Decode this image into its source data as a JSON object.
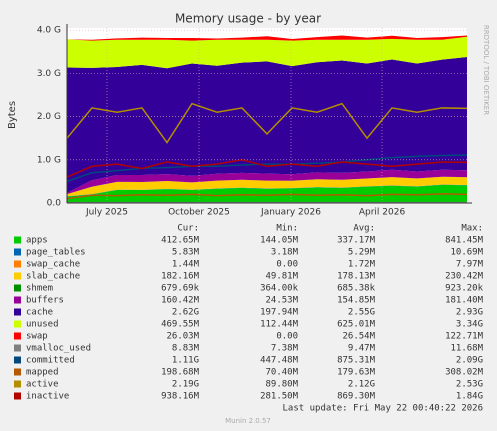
{
  "chart_data": {
    "type": "stacked-area",
    "title": "Memory usage - by year",
    "y_label": "Bytes",
    "side_label": "RRDTOOL / TOBI OETIKER",
    "x": [
      0,
      25,
      50,
      75,
      100,
      125,
      150,
      175,
      200,
      225,
      250,
      275,
      300,
      325,
      350,
      375,
      400
    ],
    "xlim": [
      0,
      400
    ],
    "xticks": [
      {
        "value": 40,
        "label": "July 2025"
      },
      {
        "value": 132,
        "label": "October 2025"
      },
      {
        "value": 224,
        "label": "January 2026"
      },
      {
        "value": 315,
        "label": "April 2026"
      }
    ],
    "ylim": [
      0,
      4.05
    ],
    "yticks": [
      {
        "value": 0,
        "label": "0.0"
      },
      {
        "value": 1,
        "label": "1.0 G"
      },
      {
        "value": 2,
        "label": "2.0 G"
      },
      {
        "value": 3,
        "label": "3.0 G"
      },
      {
        "value": 4,
        "label": "4.0 G"
      }
    ],
    "grid": true,
    "stats_headers": [
      "Cur:",
      "Min:",
      "Avg:",
      "Max:"
    ],
    "series": [
      {
        "name": "apps",
        "color": "#00cc00",
        "kind": "area",
        "values": [
          0.15,
          0.2,
          0.3,
          0.3,
          0.32,
          0.3,
          0.33,
          0.35,
          0.33,
          0.34,
          0.36,
          0.35,
          0.38,
          0.4,
          0.38,
          0.42,
          0.41
        ],
        "stats": [
          "412.65M",
          "144.05M",
          "337.17M",
          "841.45M"
        ]
      },
      {
        "name": "page_tables",
        "color": "#0066b3",
        "kind": "area",
        "values": [
          0.005,
          0.006,
          0.006,
          0.005,
          0.006,
          0.006,
          0.005,
          0.006,
          0.006,
          0.005,
          0.006,
          0.006,
          0.005,
          0.006,
          0.006,
          0.006,
          0.006
        ],
        "stats": [
          "5.83M",
          "3.18M",
          "5.29M",
          "10.69M"
        ]
      },
      {
        "name": "swap_cache",
        "color": "#ff8000",
        "kind": "area",
        "values": [
          0,
          0.001,
          0.002,
          0.001,
          0.002,
          0.001,
          0.002,
          0.001,
          0.002,
          0.001,
          0.002,
          0.001,
          0.002,
          0.003,
          0.002,
          0.002,
          0.001
        ],
        "stats": [
          "1.44M",
          "0.00",
          "1.72M",
          "7.97M"
        ]
      },
      {
        "name": "slab_cache",
        "color": "#ffcc00",
        "kind": "area",
        "values": [
          0.05,
          0.17,
          0.18,
          0.18,
          0.18,
          0.17,
          0.18,
          0.18,
          0.18,
          0.17,
          0.18,
          0.18,
          0.18,
          0.19,
          0.18,
          0.18,
          0.18
        ],
        "stats": [
          "182.16M",
          "49.81M",
          "178.13M",
          "230.42M"
        ]
      },
      {
        "name": "shmem",
        "color": "#008f00",
        "kind": "area",
        "values": [
          0.0004,
          0.0007,
          0.0007,
          0.0007,
          0.0007,
          0.0007,
          0.0007,
          0.0007,
          0.0007,
          0.0007,
          0.0007,
          0.0007,
          0.0007,
          0.0007,
          0.0007,
          0.0007,
          0.0007
        ],
        "stats": [
          "679.69k",
          "364.00k",
          "685.38k",
          "923.20k"
        ]
      },
      {
        "name": "buffers",
        "color": "#990099",
        "kind": "area",
        "values": [
          0.03,
          0.15,
          0.16,
          0.16,
          0.16,
          0.15,
          0.16,
          0.16,
          0.16,
          0.15,
          0.16,
          0.16,
          0.16,
          0.17,
          0.16,
          0.16,
          0.16
        ],
        "stats": [
          "160.42M",
          "24.53M",
          "154.85M",
          "181.40M"
        ]
      },
      {
        "name": "cache",
        "color": "#330099",
        "kind": "area",
        "values": [
          2.9,
          2.6,
          2.5,
          2.55,
          2.45,
          2.6,
          2.5,
          2.55,
          2.6,
          2.5,
          2.55,
          2.6,
          2.5,
          2.55,
          2.5,
          2.55,
          2.62
        ],
        "stats": [
          "2.62G",
          "197.94M",
          "2.55G",
          "2.93G"
        ]
      },
      {
        "name": "unused",
        "color": "#ccff00",
        "kind": "area",
        "values": [
          0.65,
          0.63,
          0.63,
          0.58,
          0.66,
          0.53,
          0.6,
          0.53,
          0.5,
          0.59,
          0.52,
          0.48,
          0.55,
          0.48,
          0.55,
          0.46,
          0.47
        ],
        "stats": [
          "469.55M",
          "112.44M",
          "625.01M",
          "3.34G"
        ]
      },
      {
        "name": "swap",
        "color": "#ff0000",
        "kind": "area",
        "values": [
          0,
          0.02,
          0.03,
          0.05,
          0.04,
          0.06,
          0.03,
          0.05,
          0.08,
          0.04,
          0.06,
          0.1,
          0.05,
          0.07,
          0.04,
          0.06,
          0.03
        ],
        "stats": [
          "26.03M",
          "0.00",
          "26.54M",
          "122.71M"
        ]
      },
      {
        "name": "vmalloc_used",
        "color": "#808080",
        "kind": "line",
        "values": [
          0.009,
          0.009,
          0.009,
          0.009,
          0.009,
          0.009,
          0.009,
          0.009,
          0.009,
          0.009,
          0.009,
          0.009,
          0.009,
          0.009,
          0.009,
          0.009,
          0.009
        ],
        "stats": [
          "8.83M",
          "7.38M",
          "9.47M",
          "11.68M"
        ]
      },
      {
        "name": "committed",
        "color": "#00487d",
        "kind": "line",
        "values": [
          0.5,
          0.7,
          0.75,
          0.8,
          0.82,
          0.85,
          0.85,
          0.88,
          0.9,
          0.9,
          0.92,
          0.95,
          1.0,
          1.05,
          1.08,
          1.1,
          1.11
        ],
        "stats": [
          "1.11G",
          "447.48M",
          "875.31M",
          "2.09G"
        ]
      },
      {
        "name": "mapped",
        "color": "#b35a00",
        "kind": "line",
        "values": [
          0.1,
          0.18,
          0.17,
          0.19,
          0.18,
          0.2,
          0.17,
          0.19,
          0.18,
          0.2,
          0.18,
          0.19,
          0.17,
          0.2,
          0.19,
          0.21,
          0.2
        ],
        "stats": [
          "198.68M",
          "70.40M",
          "179.63M",
          "308.02M"
        ]
      },
      {
        "name": "active",
        "color": "#b38f00",
        "kind": "line",
        "values": [
          1.5,
          2.2,
          2.1,
          2.2,
          1.4,
          2.3,
          2.1,
          2.2,
          1.6,
          2.2,
          2.1,
          2.3,
          1.5,
          2.2,
          2.1,
          2.2,
          2.19
        ],
        "stats": [
          "2.19G",
          "89.80M",
          "2.12G",
          "2.53G"
        ]
      },
      {
        "name": "inactive",
        "color": "#b30000",
        "kind": "line",
        "values": [
          0.6,
          0.85,
          0.9,
          0.8,
          0.95,
          0.85,
          0.9,
          1.0,
          0.85,
          0.9,
          0.85,
          0.95,
          0.9,
          0.85,
          0.9,
          0.95,
          0.94
        ],
        "stats": [
          "938.16M",
          "281.50M",
          "869.30M",
          "1.84G"
        ]
      }
    ],
    "last_update": "Last update: Fri May 22 00:40:22 2026",
    "version": "Munin 2.0.57"
  }
}
